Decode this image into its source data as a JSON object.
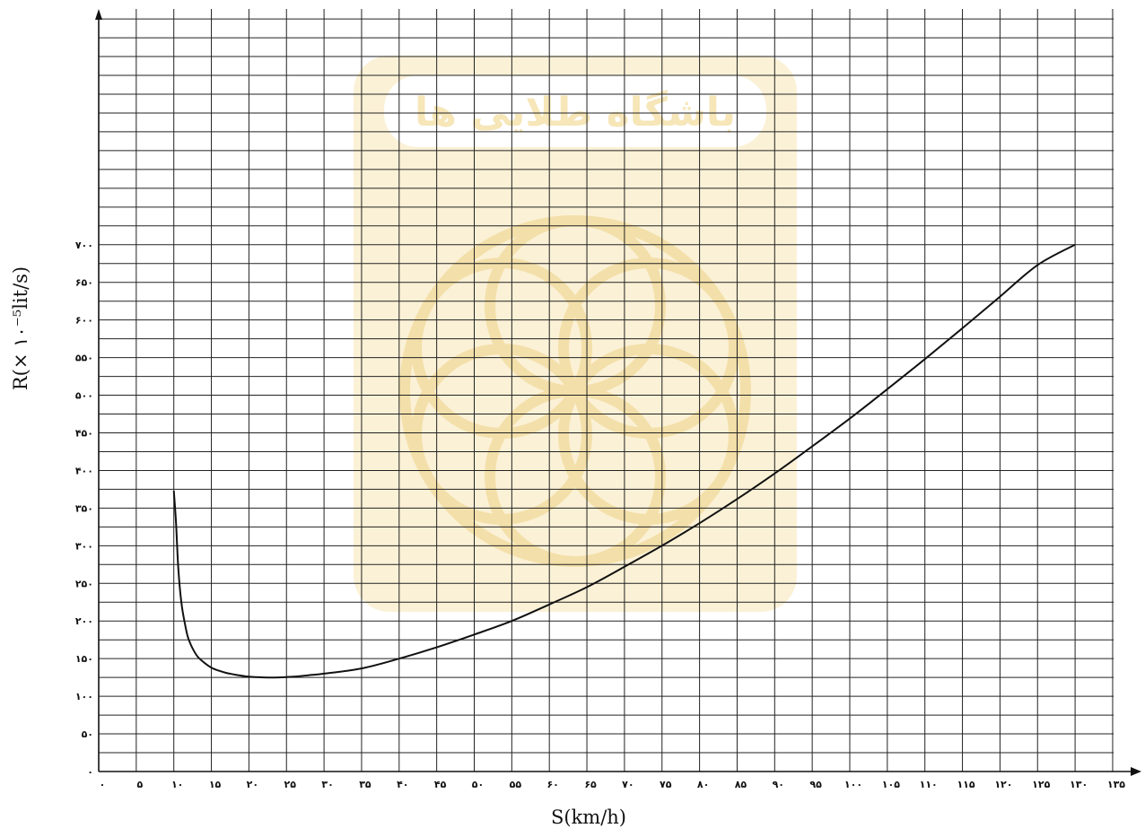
{
  "chart_data": {
    "type": "line",
    "xlabel": "S(km/h)",
    "ylabel": "R(× ۱۰⁻⁵lit/s)",
    "xlim": [
      0,
      135
    ],
    "ylim": [
      0,
      700
    ],
    "x_ticks": [
      0,
      5,
      10,
      15,
      20,
      25,
      30,
      35,
      40,
      45,
      50,
      55,
      60,
      65,
      70,
      75,
      80,
      85,
      90,
      95,
      100,
      105,
      110,
      115,
      120,
      125,
      130,
      135
    ],
    "x_tick_labels": [
      "۰",
      "۵",
      "۱۰",
      "۱۵",
      "۲۰",
      "۲۵",
      "۳۰",
      "۳۵",
      "۴۰",
      "۴۵",
      "۵۰",
      "۵۵",
      "۶۰",
      "۶۵",
      "۷۰",
      "۷۵",
      "۸۰",
      "۸۵",
      "۹۰",
      "۹۵",
      "۱۰۰",
      "۱۰۵",
      "۱۱۰",
      "۱۱۵",
      "۱۲۰",
      "۱۲۵",
      "۱۳۰",
      "۱۳۵"
    ],
    "y_ticks": [
      0,
      50,
      100,
      150,
      200,
      250,
      300,
      350,
      400,
      450,
      500,
      550,
      600,
      650,
      700
    ],
    "y_tick_labels": [
      "۰",
      "۵۰",
      "۱۰۰",
      "۱۵۰",
      "۲۰۰",
      "۲۵۰",
      "۳۰۰",
      "۳۵۰",
      "۴۰۰",
      "۴۵۰",
      "۵۰۰",
      "۵۵۰",
      "۶۰۰",
      "۶۵۰",
      "۷۰۰"
    ],
    "grid": true,
    "series": [
      {
        "x": [
          10,
          10.3,
          10.6,
          11,
          11.5,
          12,
          13,
          14,
          15,
          16,
          17,
          18,
          20,
          22,
          24,
          26,
          28,
          30,
          35,
          40,
          45,
          50,
          55,
          60,
          65,
          70,
          75,
          80,
          85,
          90,
          95,
          100,
          105,
          110,
          115,
          120,
          125,
          130
        ],
        "y": [
          373,
          330,
          270,
          225,
          195,
          175,
          155,
          145,
          138,
          134,
          131,
          129,
          126,
          125,
          125,
          126,
          128,
          130,
          137,
          150,
          165,
          182,
          200,
          222,
          245,
          272,
          300,
          330,
          362,
          396,
          432,
          469,
          508,
          548,
          589,
          631,
          673,
          700
        ]
      }
    ]
  },
  "watermark": {
    "text": "باشگاه طلایی ها",
    "color": "#f6e6b8"
  }
}
